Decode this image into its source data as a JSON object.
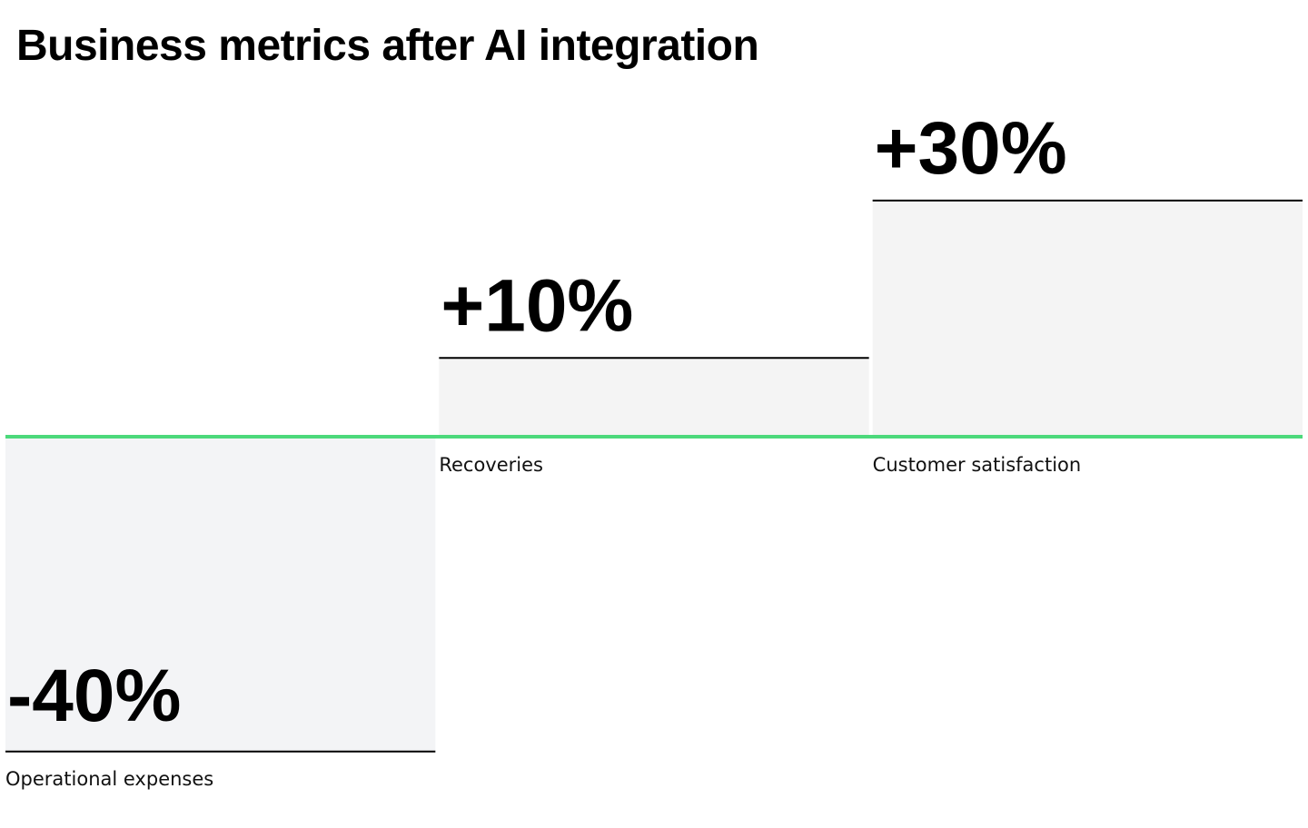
{
  "chart_data": {
    "type": "bar",
    "title": "Business metrics after AI integration",
    "categories": [
      "Operational expenses",
      "Recoveries",
      "Customer satisfaction"
    ],
    "values": [
      -40,
      10,
      30
    ],
    "value_labels": [
      "-40%",
      "+10%",
      "+30%"
    ],
    "unit": "%",
    "ylim": [
      -40,
      40
    ],
    "grid": false,
    "legend": "none",
    "colors": {
      "bar_fill": "#f4f4f4",
      "negative_bar_fill": "#f3f4f6",
      "bar_top_line": "#000000",
      "baseline": "#4cd97b"
    }
  }
}
